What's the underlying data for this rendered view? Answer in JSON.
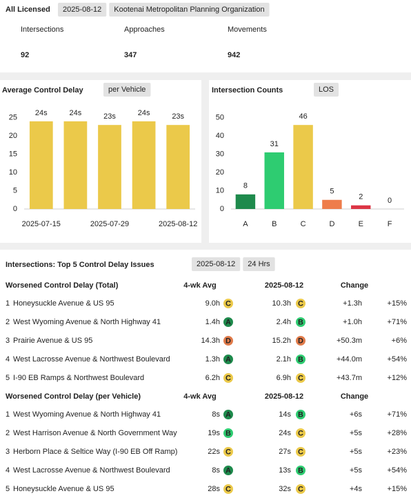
{
  "header": {
    "title": "All Licensed",
    "tags": [
      "2025-08-12",
      "Kootenai Metropolitan Planning Organization"
    ]
  },
  "kpis": [
    {
      "label": "Intersections",
      "value": "92"
    },
    {
      "label": "Approaches",
      "value": "347"
    },
    {
      "label": "Movements",
      "value": "942"
    }
  ],
  "chart_data": [
    {
      "type": "bar",
      "title": "Average Control Delay",
      "tag": "per Vehicle",
      "categories": [
        "2025-07-15",
        null,
        "2025-07-29",
        null,
        "2025-08-12"
      ],
      "values": [
        24,
        24,
        23,
        24,
        23
      ],
      "value_labels": [
        "24s",
        "24s",
        "23s",
        "24s",
        "23s"
      ],
      "color": "#ebc94a",
      "ylim": [
        0,
        27
      ],
      "yticks": [
        0,
        5,
        10,
        15,
        20,
        25
      ],
      "grid": false
    },
    {
      "type": "bar",
      "title": "Intersection Counts",
      "tag": "LOS",
      "categories": [
        "A",
        "B",
        "C",
        "D",
        "E",
        "F"
      ],
      "values": [
        8,
        31,
        46,
        5,
        2,
        0
      ],
      "colors": [
        "#1e8a4c",
        "#2ecc71",
        "#ebc94a",
        "#ee7d4b",
        "#dc3545",
        "#9e9e9e"
      ],
      "ylim": [
        0,
        54
      ],
      "yticks": [
        0,
        10,
        20,
        30,
        40,
        50
      ],
      "grid": false
    }
  ],
  "issues": {
    "title": "Intersections: Top 5 Control Delay Issues",
    "tags": [
      "2025-08-12",
      "24 Hrs"
    ],
    "grade_colors": {
      "A": "#1e8a4c",
      "B": "#2ecc71",
      "C": "#ebc94a",
      "D": "#e07b4a"
    },
    "tables": [
      {
        "columns": [
          "Worsened Control Delay (Total)",
          "4-wk Avg",
          "2025-08-12",
          "Change"
        ],
        "rows": [
          [
            "1",
            "Honeysuckle Avenue & US 95",
            "9.0h",
            "C",
            "10.3h",
            "C",
            "+1.3h",
            "+15%"
          ],
          [
            "2",
            "West Wyoming Avenue & North Highway 41",
            "1.4h",
            "A",
            "2.4h",
            "B",
            "+1.0h",
            "+71%"
          ],
          [
            "3",
            "Prairie Avenue & US 95",
            "14.3h",
            "D",
            "15.2h",
            "D",
            "+50.3m",
            "+6%"
          ],
          [
            "4",
            "West Lacrosse Avenue & Northwest Boulevard",
            "1.3h",
            "A",
            "2.1h",
            "B",
            "+44.0m",
            "+54%"
          ],
          [
            "5",
            "I-90 EB Ramps & Northwest Boulevard",
            "6.2h",
            "C",
            "6.9h",
            "C",
            "+43.7m",
            "+12%"
          ]
        ]
      },
      {
        "columns": [
          "Worsened Control Delay (per Vehicle)",
          "4-wk Avg",
          "2025-08-12",
          "Change"
        ],
        "rows": [
          [
            "1",
            "West Wyoming Avenue & North Highway 41",
            "8s",
            "A",
            "14s",
            "B",
            "+6s",
            "+71%"
          ],
          [
            "2",
            "West Harrison Avenue & North Government Way",
            "19s",
            "B",
            "24s",
            "C",
            "+5s",
            "+28%"
          ],
          [
            "3",
            "Herborn Place & Seltice Way (I-90 EB Off Ramp)",
            "22s",
            "C",
            "27s",
            "C",
            "+5s",
            "+23%"
          ],
          [
            "4",
            "West Lacrosse Avenue & Northwest Boulevard",
            "8s",
            "A",
            "13s",
            "B",
            "+5s",
            "+54%"
          ],
          [
            "5",
            "Honeysuckle Avenue & US 95",
            "28s",
            "C",
            "32s",
            "C",
            "+4s",
            "+15%"
          ]
        ]
      }
    ]
  }
}
